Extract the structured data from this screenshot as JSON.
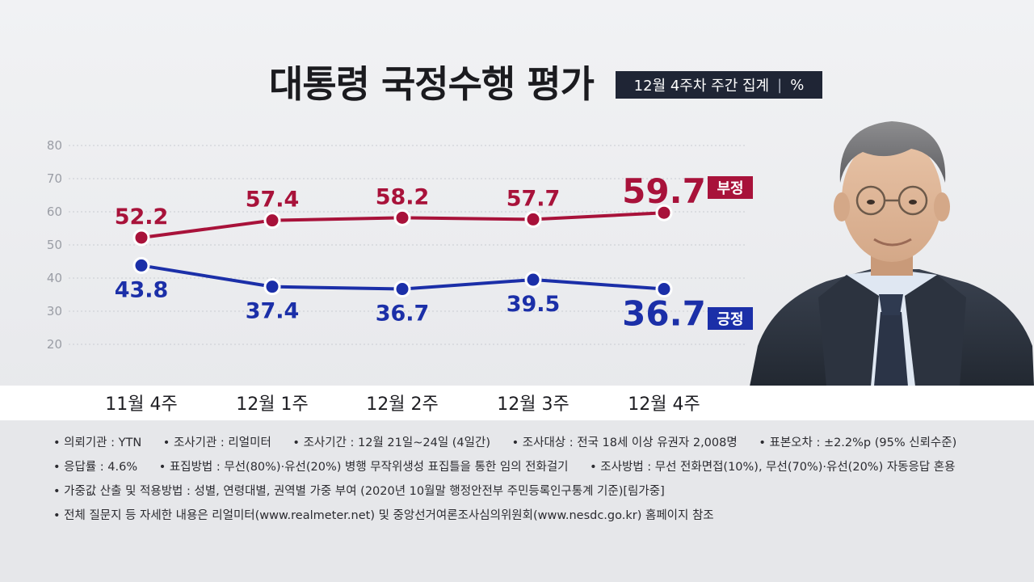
{
  "header": {
    "title": "대통령 국정수행 평가",
    "subtitle_main": "12월 4주차 주간 집계",
    "subtitle_sep": "|",
    "subtitle_unit": "%"
  },
  "chart_data": {
    "type": "line",
    "categories": [
      "11월 4주",
      "12월 1주",
      "12월 2주",
      "12월 3주",
      "12월 4주"
    ],
    "ylim": [
      20,
      80
    ],
    "yticks": [
      80,
      70,
      60,
      50,
      40,
      30,
      20
    ],
    "grid": true,
    "series": [
      {
        "name": "부정",
        "color": "#a8123a",
        "values": [
          52.2,
          57.4,
          58.2,
          57.7,
          59.7
        ],
        "labels": [
          "52.2",
          "57.4",
          "58.2",
          "57.7",
          "59.7"
        ]
      },
      {
        "name": "긍정",
        "color": "#1b2fa8",
        "values": [
          43.8,
          37.4,
          36.7,
          39.5,
          36.7
        ],
        "labels": [
          "43.8",
          "37.4",
          "36.7",
          "39.5",
          "36.7"
        ]
      }
    ]
  },
  "notes": {
    "row1": [
      "• 의뢰기관 : YTN",
      "• 조사기관 : 리얼미터",
      "• 조사기간 : 12월 21일~24일 (4일간)",
      "• 조사대상 : 전국 18세 이상 유권자 2,008명",
      "• 표본오차 : ±2.2%p (95% 신뢰수준)"
    ],
    "row2": [
      "• 응답률 : 4.6%",
      "• 표집방법 : 무선(80%)·유선(20%) 병행 무작위생성 표집틀을 통한 임의 전화걸기",
      "• 조사방법 : 무선 전화면접(10%), 무선(70%)·유선(20%) 자동응답 혼용"
    ],
    "row3": "• 가중값 산출 및 적용방법 : 성별, 연령대별, 권역별 가중 부여 (2020년 10월말 행정안전부 주민등록인구통계 기준)[림가중]",
    "row4": "• 전체 질문지 등 자세한 내용은 리얼미터(www.realmeter.net) 및 중앙선거여론조사심의위원회(www.nesdc.go.kr) 홈페이지 참조"
  }
}
